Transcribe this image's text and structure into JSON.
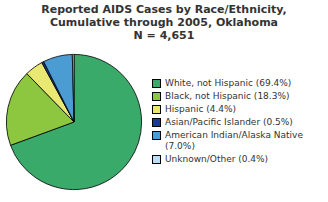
{
  "chart_data": {
    "type": "pie",
    "title": "Reported AIDS Cases by Race/Ethnicity,\nCumulative through 2005, Oklahoma",
    "subtitle": "N = 4,651",
    "categories": [
      "White, not Hispanic (69.4%)",
      "Black, not Hispanic (18.3%)",
      "Hispanic (4.4%)",
      "Asian/Pacific Islander (0.5%)",
      "American Indian/Alaska Native\n(7.0%)",
      "Unknown/Other (0.4%)"
    ],
    "values": [
      69.4,
      18.3,
      4.4,
      0.5,
      7.0,
      0.4
    ],
    "colors": [
      "#3aaa6a",
      "#8dc63f",
      "#e8e872",
      "#1a3a9a",
      "#4b9cd3",
      "#b8dff5"
    ],
    "legend": "right"
  }
}
